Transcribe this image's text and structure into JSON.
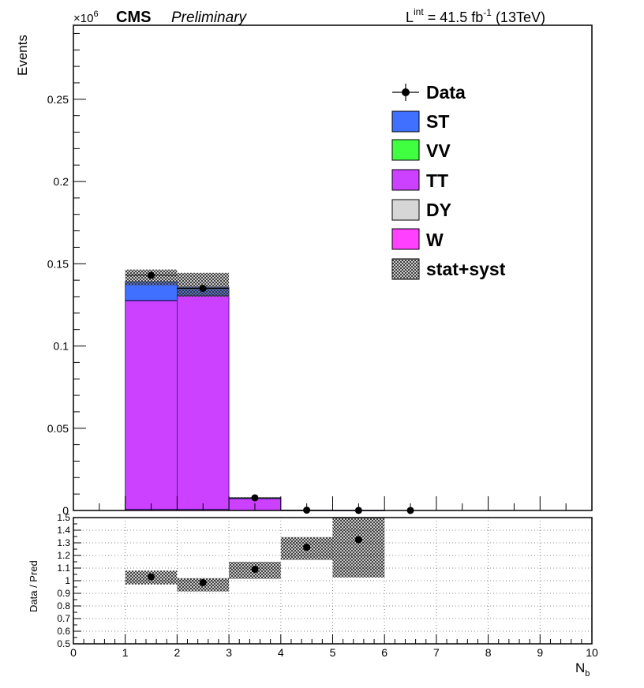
{
  "header": {
    "scale": "×10",
    "scale_exp": "6",
    "experiment": "CMS",
    "status": "Preliminary",
    "lumi_symbol": "L",
    "lumi_sup": "int",
    "lumi_value": " = 41.5 fb",
    "lumi_exp": "-1",
    "energy": " (13TeV)"
  },
  "chart_data": [
    {
      "type": "bar",
      "stacked": true,
      "ylabel": "Events",
      "y_multiplier": 1000000,
      "xlim": [
        0,
        10
      ],
      "ylim": [
        0,
        0.295
      ],
      "y_ticks": [
        "0",
        "0.05",
        "0.1",
        "0.15",
        "0.2",
        "0.25"
      ],
      "y_tick_values": [
        0,
        0.05,
        0.1,
        0.15,
        0.2,
        0.25
      ],
      "bins": [
        [
          0,
          1
        ],
        [
          1,
          2
        ],
        [
          2,
          3
        ],
        [
          3,
          4
        ],
        [
          4,
          5
        ],
        [
          5,
          6
        ],
        [
          6,
          7
        ],
        [
          7,
          8
        ],
        [
          8,
          9
        ],
        [
          9,
          10
        ]
      ],
      "series": [
        {
          "name": "W",
          "color": "#ff40ff",
          "values": [
            0,
            0.0008,
            0.0008,
            0,
            0,
            0,
            0,
            0,
            0,
            0
          ]
        },
        {
          "name": "DY",
          "color": "#d6d6d6",
          "values": [
            0,
            0,
            0,
            0,
            0,
            0,
            0,
            0,
            0,
            0
          ]
        },
        {
          "name": "TT",
          "color": "#cc40ff",
          "values": [
            0,
            0.1268,
            0.1297,
            0.0072,
            0.0002,
            5e-05,
            0,
            0,
            0,
            0
          ]
        },
        {
          "name": "VV",
          "color": "#40ff40",
          "values": [
            0,
            0.0002,
            0.0002,
            0,
            0,
            0,
            0,
            0,
            0,
            0
          ]
        },
        {
          "name": "ST",
          "color": "#4070ff",
          "values": [
            0,
            0.0114,
            0.005,
            0.0003,
            0,
            0,
            0,
            0,
            0,
            0
          ]
        }
      ],
      "uncertainty": {
        "name": "stat+syst",
        "lo": [
          0,
          0.137,
          0.13,
          0.0072,
          0,
          0,
          0,
          0,
          0,
          0
        ],
        "hi": [
          0,
          0.1465,
          0.1445,
          0.008,
          0,
          0,
          0,
          0,
          0,
          0
        ]
      },
      "data": {
        "name": "Data",
        "x": [
          1.5,
          2.5,
          3.5,
          4.5,
          5.5,
          6.5
        ],
        "y": [
          0.143,
          0.135,
          0.0077,
          0.0002,
          5e-05,
          2e-05
        ]
      },
      "legend_entries": [
        "Data",
        "ST",
        "VV",
        "TT",
        "DY",
        "W",
        "stat+syst"
      ],
      "legend_location": "upper-right"
    },
    {
      "type": "scatter",
      "ylabel": "Data / Pred",
      "xlabel": "N",
      "xlabel_sub": "b",
      "xlim": [
        0,
        10
      ],
      "ylim": [
        0.5,
        1.5
      ],
      "x_ticks": [
        "0",
        "1",
        "2",
        "3",
        "4",
        "5",
        "6",
        "7",
        "8",
        "9",
        "10"
      ],
      "x_tick_values": [
        0,
        1,
        2,
        3,
        4,
        5,
        6,
        7,
        8,
        9,
        10
      ],
      "y_ticks": [
        "0.5",
        "0.6",
        "0.7",
        "0.8",
        "0.9",
        "1",
        "1.1",
        "1.2",
        "1.3",
        "1.4",
        "1.5"
      ],
      "y_tick_values": [
        0.5,
        0.6,
        0.7,
        0.8,
        0.9,
        1.0,
        1.1,
        1.2,
        1.3,
        1.4,
        1.5
      ],
      "grid": true,
      "points": {
        "x": [
          1.5,
          2.5,
          3.5,
          4.5,
          5.5
        ],
        "y": [
          1.03,
          0.985,
          1.09,
          1.265,
          1.325
        ]
      },
      "uncertainty_bands": [
        {
          "x0": 1,
          "x1": 2,
          "lo": 0.97,
          "hi": 1.08
        },
        {
          "x0": 2,
          "x1": 3,
          "lo": 0.915,
          "hi": 1.02
        },
        {
          "x0": 3,
          "x1": 4,
          "lo": 1.015,
          "hi": 1.15
        },
        {
          "x0": 4,
          "x1": 5,
          "lo": 1.165,
          "hi": 1.345
        },
        {
          "x0": 5,
          "x1": 6,
          "lo": 1.025,
          "hi": 1.5
        }
      ]
    }
  ]
}
